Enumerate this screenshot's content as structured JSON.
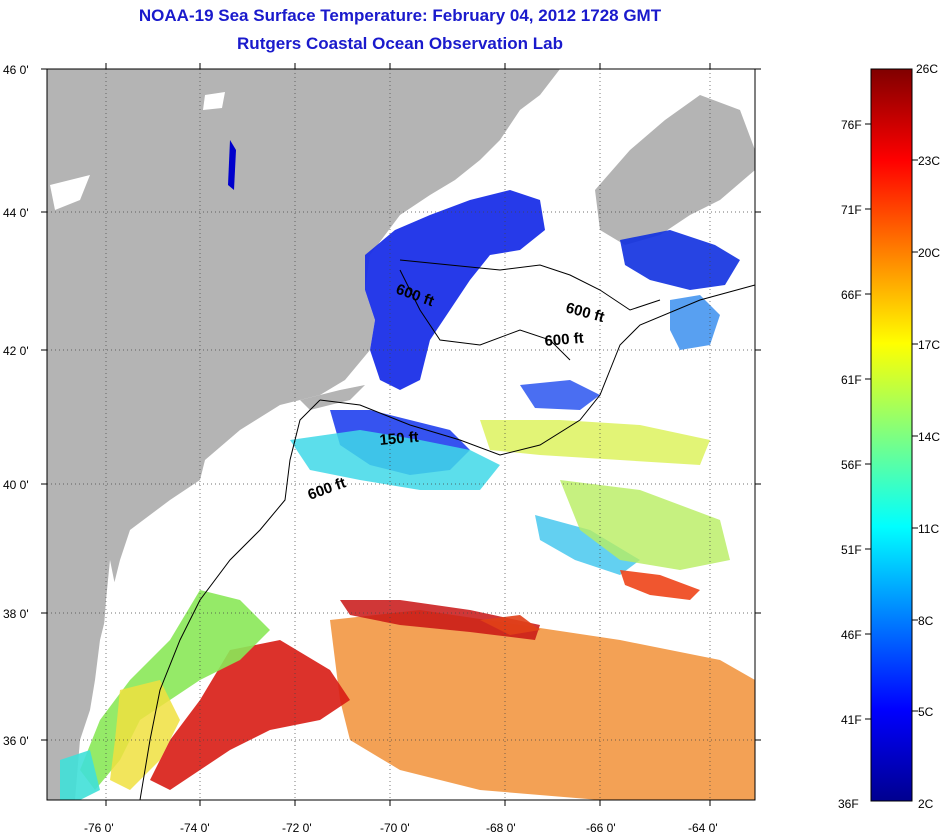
{
  "title": {
    "line1": "NOAA-19 Sea Surface Temperature:  February 04, 2012 1728 GMT",
    "line2": "Rutgers Coastal Ocean Observation Lab"
  },
  "map": {
    "lat_ticks": [
      "46 0'",
      "44 0'",
      "42 0'",
      "40 0'",
      "38 0'",
      "36 0'"
    ],
    "lon_ticks": [
      "-76 0'",
      "-74 0'",
      "-72 0'",
      "-70 0'",
      "-68 0'",
      "-66 0'",
      "-64 0'"
    ],
    "contour_labels": [
      "600 ft",
      "600 ft",
      "600 ft",
      "150 ft",
      "600 ft"
    ],
    "land_color": "#b4b4b4",
    "no_data_color": "#ffffff"
  },
  "colorbar": {
    "fahrenheit_labels": [
      "76F",
      "71F",
      "66F",
      "61F",
      "56F",
      "51F",
      "46F",
      "41F",
      "36F"
    ],
    "celsius_labels": [
      "26C",
      "23C",
      "20C",
      "17C",
      "14C",
      "11C",
      "8C",
      "5C",
      "2C"
    ],
    "range_celsius": [
      2,
      26
    ],
    "colormap": [
      "#00008f",
      "#0000ff",
      "#00ffff",
      "#ffff00",
      "#ff0000",
      "#800000"
    ]
  }
}
